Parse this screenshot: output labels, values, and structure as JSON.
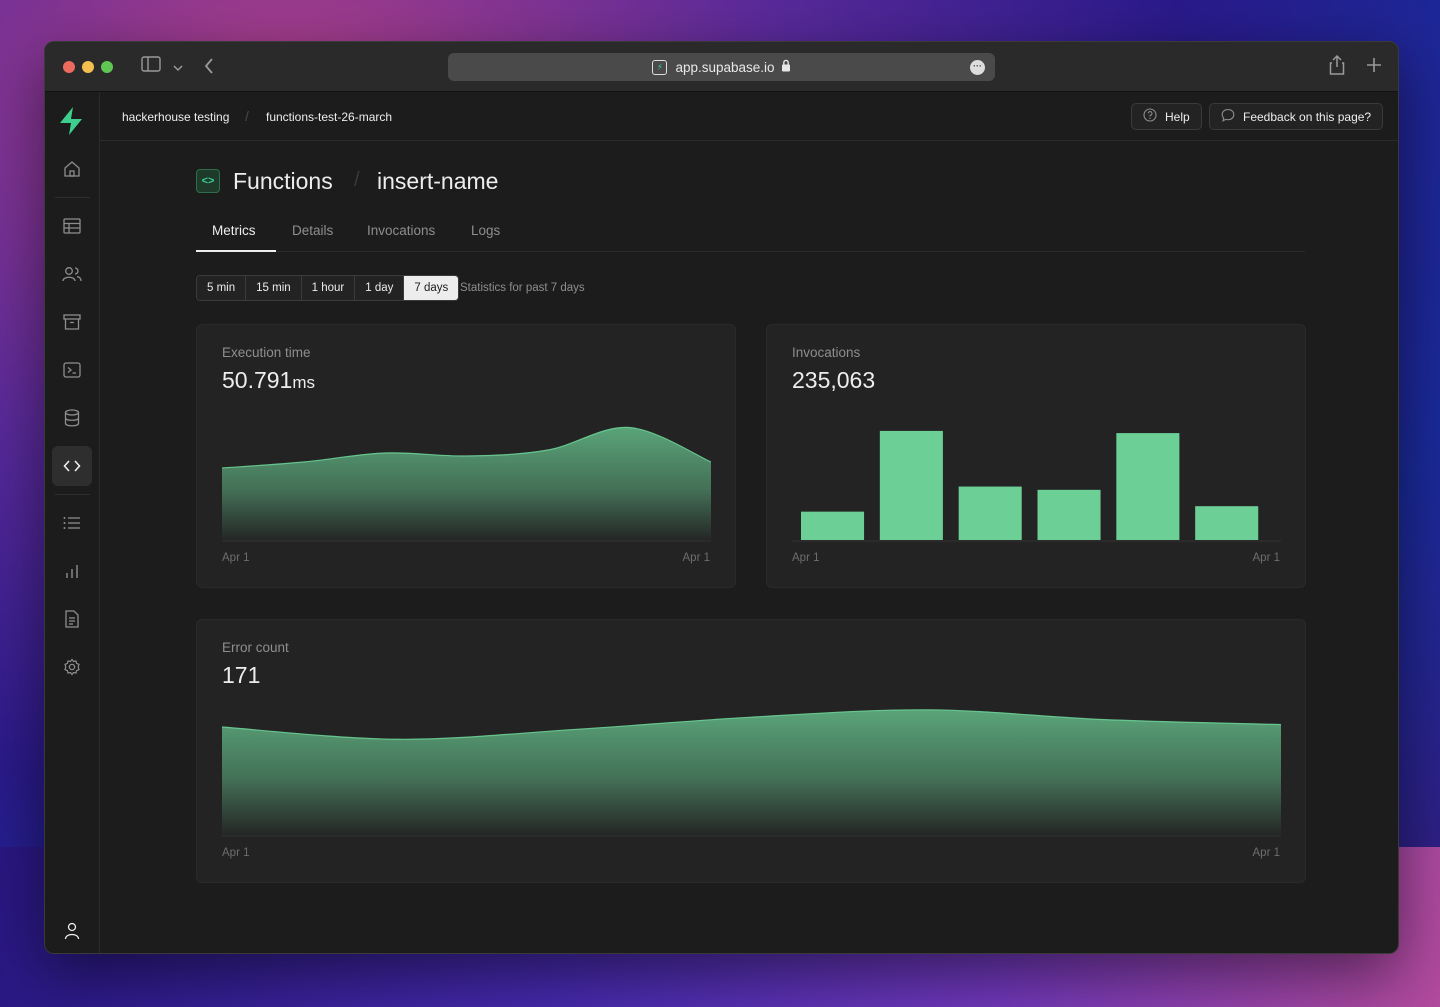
{
  "browser": {
    "url": "app.supabase.io"
  },
  "breadcrumb": {
    "org": "hackerhouse testing",
    "project": "functions-test-26-march"
  },
  "header_buttons": {
    "help": "Help",
    "feedback": "Feedback on this page?"
  },
  "page": {
    "title": "Functions",
    "function_name": "insert-name"
  },
  "tabs": [
    {
      "label": "Metrics",
      "active": true
    },
    {
      "label": "Details",
      "active": false
    },
    {
      "label": "Invocations",
      "active": false
    },
    {
      "label": "Logs",
      "active": false
    }
  ],
  "time_ranges": [
    {
      "label": "5 min",
      "selected": false
    },
    {
      "label": "15 min",
      "selected": false
    },
    {
      "label": "1 hour",
      "selected": false
    },
    {
      "label": "1 day",
      "selected": false
    },
    {
      "label": "7 days",
      "selected": true
    }
  ],
  "range_note": "Statistics for past 7 days",
  "colors": {
    "accent": "#6ccf96",
    "background": "#1c1c1c",
    "card": "#232323"
  },
  "sidebar_icons": [
    "home-icon",
    "table-icon",
    "users-icon",
    "archive-icon",
    "terminal-icon",
    "database-icon",
    "code-icon",
    "list-icon",
    "bar-chart-icon",
    "document-icon",
    "gear-icon",
    "user-icon"
  ],
  "cards": {
    "execution_time": {
      "label": "Execution time",
      "value": "50.791",
      "unit": "ms",
      "x_start": "Apr 1",
      "x_end": "Apr 1"
    },
    "invocations": {
      "label": "Invocations",
      "value": "235,063",
      "x_start": "Apr 1",
      "x_end": "Apr 1"
    },
    "error_count": {
      "label": "Error count",
      "value": "171",
      "x_start": "Apr 1",
      "x_end": "Apr 1"
    }
  },
  "chart_data": [
    {
      "type": "area",
      "title": "Execution time",
      "x": [
        0,
        1,
        2,
        3,
        4,
        5,
        6
      ],
      "values": [
        48,
        52,
        58,
        56,
        60,
        75,
        52
      ],
      "ylim": [
        0,
        80
      ],
      "grid": false
    },
    {
      "type": "bar",
      "title": "Invocations",
      "categories": [
        "1",
        "2",
        "3",
        "4",
        "5",
        "6"
      ],
      "values": [
        26,
        100,
        49,
        46,
        98,
        31
      ],
      "ylim": [
        0,
        110
      ],
      "grid": false
    },
    {
      "type": "area",
      "title": "Error count",
      "x": [
        0,
        1,
        2,
        3,
        4,
        5,
        6
      ],
      "values": [
        88,
        78,
        86,
        96,
        102,
        94,
        90
      ],
      "ylim": [
        0,
        110
      ],
      "grid": false
    }
  ]
}
